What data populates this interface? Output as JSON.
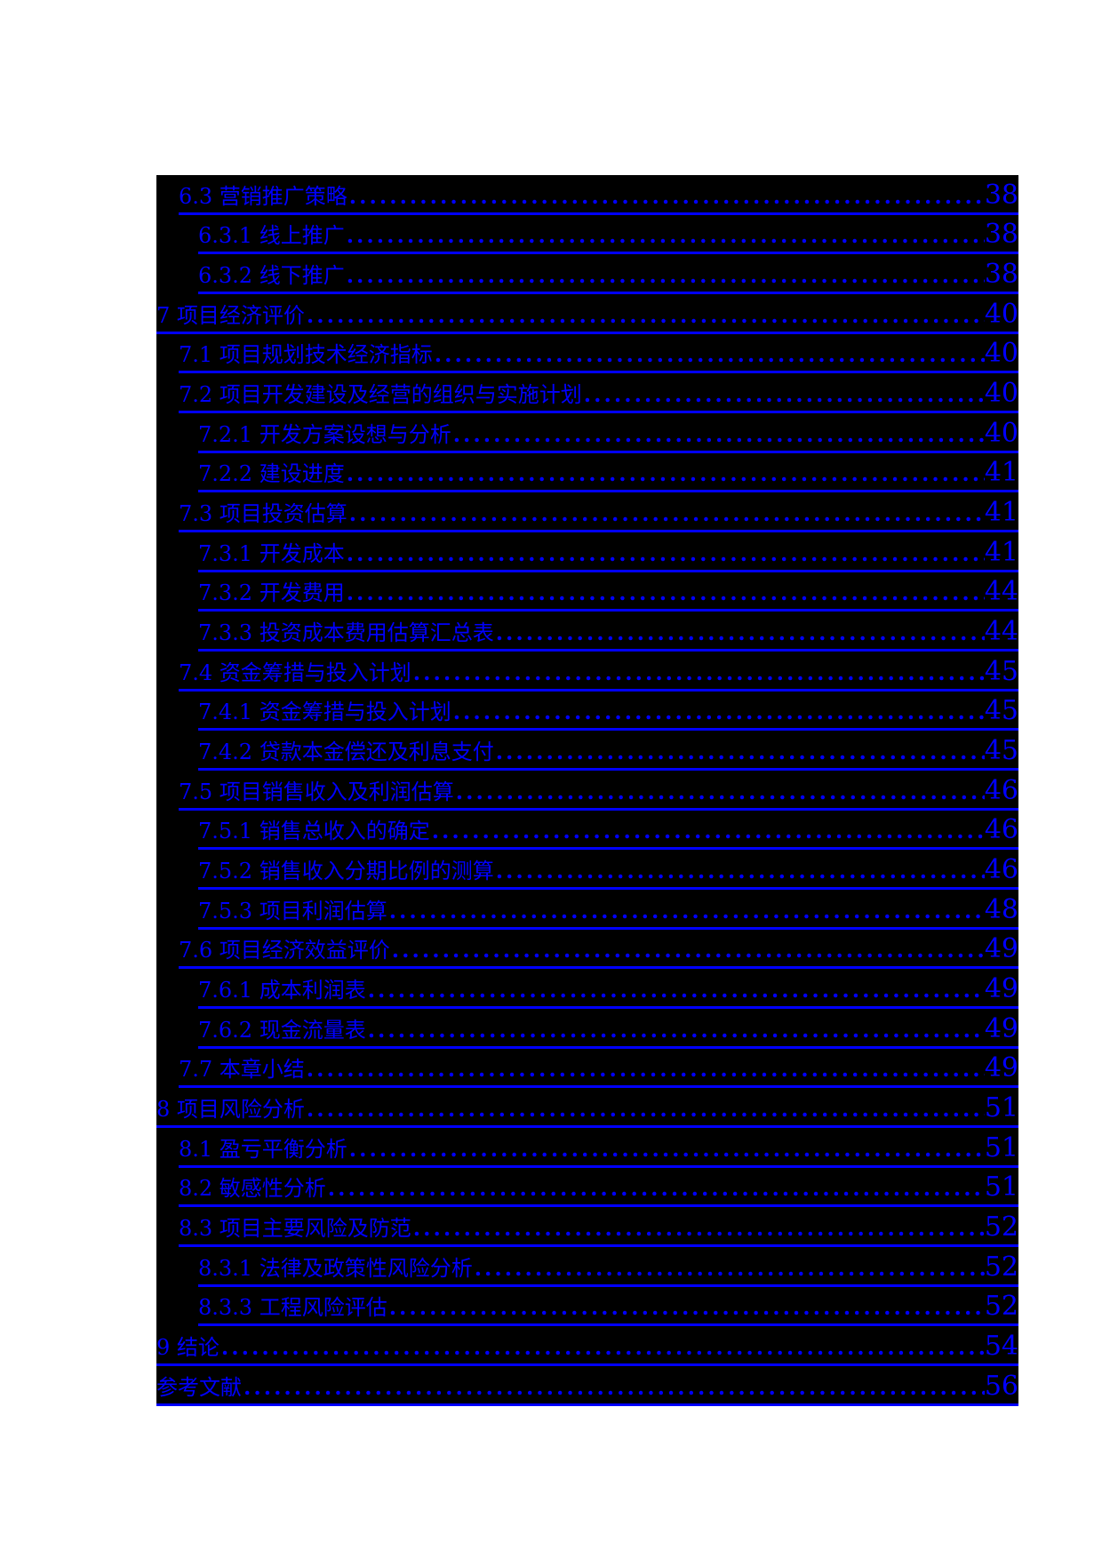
{
  "page": {
    "background_color": "#ffffff",
    "content_block_color": "#000000",
    "link_color": "#0000ff"
  },
  "toc": {
    "leader_char": ".",
    "entries": [
      {
        "level": 2,
        "title": "6.3 营销推广策略",
        "page": "38"
      },
      {
        "level": 3,
        "title": "6.3.1 线上推广",
        "page": "38"
      },
      {
        "level": 3,
        "title": "6.3.2 线下推广",
        "page": "38"
      },
      {
        "level": 1,
        "title": "7 项目经济评价",
        "page": "40"
      },
      {
        "level": 2,
        "title": "7.1 项目规划技术经济指标",
        "page": "40"
      },
      {
        "level": 2,
        "title": "7.2 项目开发建设及经营的组织与实施计划",
        "page": "40"
      },
      {
        "level": 3,
        "title": "7.2.1 开发方案设想与分析",
        "page": "40"
      },
      {
        "level": 3,
        "title": "7.2.2 建设进度",
        "page": "41"
      },
      {
        "level": 2,
        "title": "7.3 项目投资估算",
        "page": "41"
      },
      {
        "level": 3,
        "title": "7.3.1 开发成本",
        "page": "41"
      },
      {
        "level": 3,
        "title": "7.3.2 开发费用",
        "page": "44"
      },
      {
        "level": 3,
        "title": "7.3.3 投资成本费用估算汇总表",
        "page": "44"
      },
      {
        "level": 2,
        "title": "7.4 资金筹措与投入计划",
        "page": "45"
      },
      {
        "level": 3,
        "title": "7.4.1 资金筹措与投入计划",
        "page": "45"
      },
      {
        "level": 3,
        "title": "7.4.2 贷款本金偿还及利息支付",
        "page": "45"
      },
      {
        "level": 2,
        "title": "7.5 项目销售收入及利润估算",
        "page": "46"
      },
      {
        "level": 3,
        "title": "7.5.1 销售总收入的确定",
        "page": "46"
      },
      {
        "level": 3,
        "title": "7.5.2 销售收入分期比例的测算",
        "page": "46"
      },
      {
        "level": 3,
        "title": "7.5.3 项目利润估算",
        "page": "48"
      },
      {
        "level": 2,
        "title": "7.6 项目经济效益评价",
        "page": "49"
      },
      {
        "level": 3,
        "title": "7.6.1 成本利润表",
        "page": "49"
      },
      {
        "level": 3,
        "title": "7.6.2 现金流量表",
        "page": "49"
      },
      {
        "level": 2,
        "title": "7.7 本章小结",
        "page": "49"
      },
      {
        "level": 1,
        "title": "8 项目风险分析",
        "page": "51"
      },
      {
        "level": 2,
        "title": "8.1 盈亏平衡分析",
        "page": "51"
      },
      {
        "level": 2,
        "title": "8.2 敏感性分析",
        "page": "51"
      },
      {
        "level": 2,
        "title": "8.3 项目主要风险及防范",
        "page": "52"
      },
      {
        "level": 3,
        "title": "8.3.1 法律及政策性风险分析",
        "page": "52"
      },
      {
        "level": 3,
        "title": "8.3.3 工程风险评估",
        "page": "52"
      },
      {
        "level": 1,
        "title": "9 结论",
        "page": "54"
      },
      {
        "level": 1,
        "title": "参考文献",
        "page": "56"
      }
    ]
  }
}
